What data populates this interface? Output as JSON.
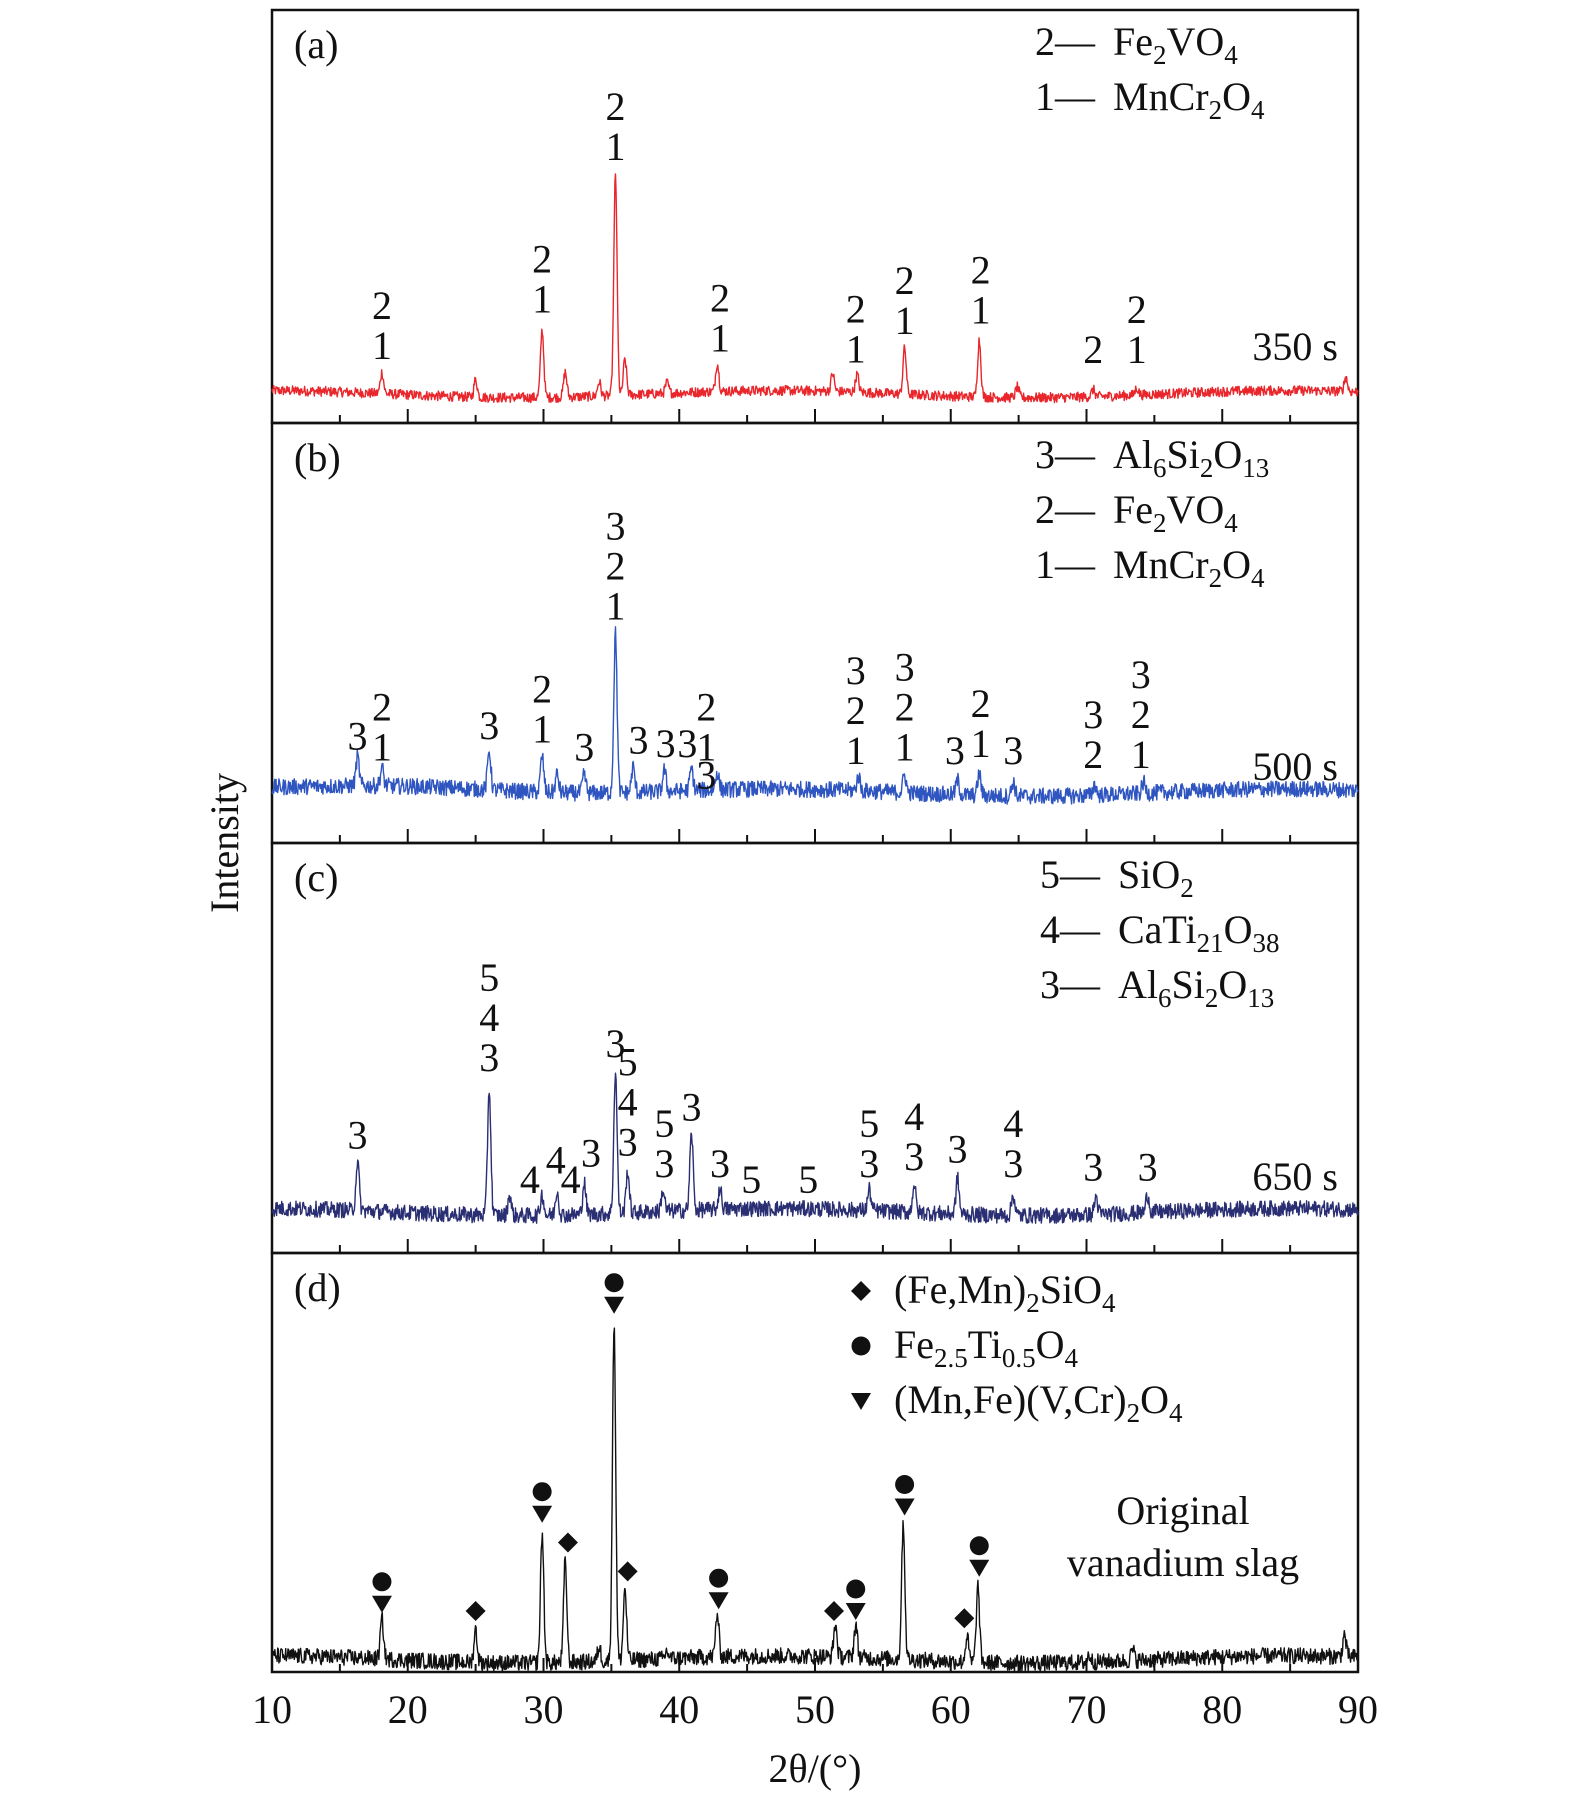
{
  "chart_data": {
    "type": "line",
    "xlabel": "2θ/(°)",
    "ylabel": "Intensity",
    "xlim": [
      10,
      90
    ],
    "x_ticks": [
      10,
      20,
      30,
      40,
      50,
      60,
      70,
      80,
      90
    ],
    "grid": false,
    "panels": [
      {
        "id": "a",
        "label": "(a)",
        "annotation": "350 s",
        "color": "#e8262b",
        "baseline": 0.07,
        "legend": [
          {
            "key": "2",
            "dash": "—",
            "formula": [
              [
                "Fe",
                ""
              ],
              [
                "2",
                "sub"
              ],
              [
                "VO",
                ""
              ],
              [
                "4",
                "sub"
              ]
            ]
          },
          {
            "key": "1",
            "dash": "—",
            "formula": [
              [
                "MnCr",
                ""
              ],
              [
                "2",
                "sub"
              ],
              [
                "O",
                ""
              ],
              [
                "4",
                "sub"
              ]
            ]
          }
        ],
        "peaks": [
          [
            18.1,
            0.06
          ],
          [
            25.0,
            0.05
          ],
          [
            29.9,
            0.19
          ],
          [
            31.6,
            0.07
          ],
          [
            34.1,
            0.04
          ],
          [
            35.3,
            0.62
          ],
          [
            36.0,
            0.1
          ],
          [
            39.1,
            0.03
          ],
          [
            42.8,
            0.08
          ],
          [
            51.3,
            0.05
          ],
          [
            53.1,
            0.05
          ],
          [
            56.6,
            0.13
          ],
          [
            62.1,
            0.16
          ],
          [
            64.9,
            0.03
          ],
          [
            70.5,
            0.02
          ],
          [
            73.7,
            0.02
          ],
          [
            89.1,
            0.04
          ]
        ],
        "markers": [
          {
            "x": 18.1,
            "lines": [
              "2",
              "1"
            ]
          },
          {
            "x": 29.9,
            "lines": [
              "2",
              "1"
            ]
          },
          {
            "x": 35.3,
            "lines": [
              "2",
              "1"
            ]
          },
          {
            "x": 43.0,
            "lines": [
              "2",
              "1"
            ]
          },
          {
            "x": 53.0,
            "lines": [
              "2",
              "1"
            ]
          },
          {
            "x": 56.6,
            "lines": [
              "2",
              "1"
            ]
          },
          {
            "x": 62.2,
            "lines": [
              "2",
              "1"
            ]
          },
          {
            "x": 70.5,
            "lines": [
              "2"
            ]
          },
          {
            "x": 73.7,
            "lines": [
              "2",
              "1"
            ]
          }
        ]
      },
      {
        "id": "b",
        "label": "(b)",
        "annotation": "500 s",
        "color": "#2f55c0",
        "baseline": 0.12,
        "legend": [
          {
            "key": "3",
            "dash": "—",
            "formula": [
              [
                "Al",
                ""
              ],
              [
                "6",
                "sub"
              ],
              [
                "Si",
                ""
              ],
              [
                "2",
                "sub"
              ],
              [
                "O",
                ""
              ],
              [
                "13",
                "sub"
              ]
            ]
          },
          {
            "key": "2",
            "dash": "—",
            "formula": [
              [
                "Fe",
                ""
              ],
              [
                "2",
                "sub"
              ],
              [
                "VO",
                ""
              ],
              [
                "4",
                "sub"
              ]
            ]
          },
          {
            "key": "1",
            "dash": "—",
            "formula": [
              [
                "MnCr",
                ""
              ],
              [
                "2",
                "sub"
              ],
              [
                "O",
                ""
              ],
              [
                "4",
                "sub"
              ]
            ]
          }
        ],
        "peaks": [
          [
            16.3,
            0.08
          ],
          [
            18.1,
            0.05
          ],
          [
            26.0,
            0.11
          ],
          [
            29.9,
            0.1
          ],
          [
            31.0,
            0.05
          ],
          [
            33.0,
            0.05
          ],
          [
            35.3,
            0.44
          ],
          [
            36.6,
            0.07
          ],
          [
            38.9,
            0.06
          ],
          [
            40.9,
            0.06
          ],
          [
            42.8,
            0.05
          ],
          [
            53.2,
            0.04
          ],
          [
            56.6,
            0.05
          ],
          [
            60.5,
            0.04
          ],
          [
            62.1,
            0.06
          ],
          [
            64.6,
            0.04
          ],
          [
            70.6,
            0.03
          ],
          [
            74.2,
            0.03
          ]
        ],
        "markers": [
          {
            "x": 16.3,
            "lines": [
              "3"
            ]
          },
          {
            "x": 18.1,
            "lines": [
              "2",
              "1"
            ]
          },
          {
            "x": 26.0,
            "lines": [
              "3"
            ]
          },
          {
            "x": 29.9,
            "lines": [
              "2",
              "1"
            ]
          },
          {
            "x": 33.0,
            "lines": [
              "3"
            ]
          },
          {
            "x": 35.3,
            "lines": [
              "3",
              "2",
              "1"
            ]
          },
          {
            "x": 37.0,
            "lines": [
              "3"
            ]
          },
          {
            "x": 39.0,
            "lines": [
              "3"
            ]
          },
          {
            "x": 40.6,
            "lines": [
              "3"
            ]
          },
          {
            "x": 42.0,
            "lines": [
              "2",
              "1"
            ]
          },
          {
            "x": 42.0,
            "lines": [
              "3"
            ],
            "row": 2
          },
          {
            "x": 53.0,
            "lines": [
              "3",
              "2",
              "1"
            ]
          },
          {
            "x": 56.6,
            "lines": [
              "3",
              "2",
              "1"
            ]
          },
          {
            "x": 60.3,
            "lines": [
              "3"
            ]
          },
          {
            "x": 62.2,
            "lines": [
              "2",
              "1"
            ]
          },
          {
            "x": 64.6,
            "lines": [
              "3"
            ]
          },
          {
            "x": 70.5,
            "lines": [
              "3",
              "2"
            ]
          },
          {
            "x": 74.0,
            "lines": [
              "3",
              "2",
              "1"
            ]
          }
        ]
      },
      {
        "id": "c",
        "label": "(c)",
        "annotation": "650 s",
        "color": "#2a2e72",
        "baseline": 0.1,
        "legend": [
          {
            "key": "5",
            "dash": "—",
            "formula": [
              [
                "SiO",
                ""
              ],
              [
                "2",
                "sub"
              ]
            ]
          },
          {
            "key": "4",
            "dash": "—",
            "formula": [
              [
                "CaTi",
                ""
              ],
              [
                "21",
                "sub"
              ],
              [
                "O",
                ""
              ],
              [
                "38",
                "sub"
              ]
            ]
          },
          {
            "key": "3",
            "dash": "—",
            "formula": [
              [
                "Al",
                ""
              ],
              [
                "6",
                "sub"
              ],
              [
                "Si",
                ""
              ],
              [
                "2",
                "sub"
              ],
              [
                "O",
                ""
              ],
              [
                "13",
                "sub"
              ]
            ]
          }
        ],
        "peaks": [
          [
            16.3,
            0.14
          ],
          [
            26.0,
            0.36
          ],
          [
            27.5,
            0.06
          ],
          [
            29.9,
            0.06
          ],
          [
            31.0,
            0.07
          ],
          [
            33.0,
            0.09
          ],
          [
            35.3,
            0.4
          ],
          [
            36.2,
            0.12
          ],
          [
            38.8,
            0.06
          ],
          [
            40.9,
            0.22
          ],
          [
            43.0,
            0.06
          ],
          [
            54.0,
            0.06
          ],
          [
            57.3,
            0.08
          ],
          [
            60.5,
            0.1
          ],
          [
            64.6,
            0.06
          ],
          [
            70.7,
            0.05
          ],
          [
            74.5,
            0.05
          ]
        ],
        "markers": [
          {
            "x": 16.3,
            "lines": [
              "3"
            ]
          },
          {
            "x": 26.0,
            "lines": [
              "5",
              "4",
              "3"
            ]
          },
          {
            "x": 29.0,
            "lines": [
              "4"
            ]
          },
          {
            "x": 30.9,
            "lines": [
              "4"
            ]
          },
          {
            "x": 32.0,
            "lines": [
              "4"
            ]
          },
          {
            "x": 33.5,
            "lines": [
              "3"
            ]
          },
          {
            "x": 35.3,
            "lines": [
              "3"
            ]
          },
          {
            "x": 36.2,
            "lines": [
              "5",
              "4",
              "3"
            ]
          },
          {
            "x": 38.9,
            "lines": [
              "5",
              "3"
            ]
          },
          {
            "x": 40.9,
            "lines": [
              "3"
            ]
          },
          {
            "x": 43.0,
            "lines": [
              "3"
            ]
          },
          {
            "x": 45.3,
            "lines": [
              "5"
            ]
          },
          {
            "x": 49.5,
            "lines": [
              "5"
            ]
          },
          {
            "x": 54.0,
            "lines": [
              "5",
              "3"
            ]
          },
          {
            "x": 57.3,
            "lines": [
              "4",
              "3"
            ]
          },
          {
            "x": 60.5,
            "lines": [
              "3"
            ]
          },
          {
            "x": 64.6,
            "lines": [
              "4",
              "3"
            ]
          },
          {
            "x": 70.5,
            "lines": [
              "3"
            ]
          },
          {
            "x": 74.5,
            "lines": [
              "3"
            ]
          }
        ]
      },
      {
        "id": "d",
        "label": "(d)",
        "annotation_lines": [
          "Original",
          "vanadium slag"
        ],
        "color": "#111111",
        "baseline": 0.03,
        "legend": [
          {
            "symbol": "diamond",
            "formula": [
              [
                "(Fe,Mn)",
                ""
              ],
              [
                "2",
                "sub"
              ],
              [
                "SiO",
                ""
              ],
              [
                "4",
                "sub"
              ]
            ]
          },
          {
            "symbol": "circle",
            "formula": [
              [
                "Fe",
                ""
              ],
              [
                "2.5",
                "sub"
              ],
              [
                "Ti",
                ""
              ],
              [
                "0.5",
                "sub"
              ],
              [
                "O",
                ""
              ],
              [
                "4",
                "sub"
              ]
            ]
          },
          {
            "symbol": "triangle",
            "formula": [
              [
                "(Mn,Fe)(V,Cr)",
                ""
              ],
              [
                "2",
                "sub"
              ],
              [
                "O",
                ""
              ],
              [
                "4",
                "sub"
              ]
            ]
          }
        ],
        "peaks": [
          [
            18.1,
            0.11
          ],
          [
            25.0,
            0.09
          ],
          [
            29.9,
            0.36
          ],
          [
            31.6,
            0.28
          ],
          [
            34.1,
            0.04
          ],
          [
            35.2,
            0.94
          ],
          [
            36.0,
            0.2
          ],
          [
            39.1,
            0.02
          ],
          [
            42.8,
            0.12
          ],
          [
            51.5,
            0.09
          ],
          [
            53.0,
            0.09
          ],
          [
            56.5,
            0.38
          ],
          [
            61.2,
            0.07
          ],
          [
            62.0,
            0.21
          ],
          [
            70.2,
            0.02
          ],
          [
            73.4,
            0.03
          ],
          [
            89.0,
            0.06
          ]
        ],
        "markers": [
          {
            "x": 18.1,
            "symbols": [
              "circle",
              "triangle"
            ]
          },
          {
            "x": 25.0,
            "symbols": [
              "diamond"
            ]
          },
          {
            "x": 29.9,
            "symbols": [
              "circle",
              "triangle"
            ]
          },
          {
            "x": 31.8,
            "symbols": [
              "diamond"
            ]
          },
          {
            "x": 35.2,
            "symbols": [
              "circle",
              "triangle"
            ]
          },
          {
            "x": 36.2,
            "symbols": [
              "diamond"
            ]
          },
          {
            "x": 42.9,
            "symbols": [
              "circle",
              "triangle"
            ]
          },
          {
            "x": 51.4,
            "symbols": [
              "diamond"
            ]
          },
          {
            "x": 53.0,
            "symbols": [
              "circle",
              "triangle"
            ]
          },
          {
            "x": 56.6,
            "symbols": [
              "circle",
              "triangle"
            ]
          },
          {
            "x": 61.0,
            "symbols": [
              "diamond"
            ]
          },
          {
            "x": 62.1,
            "symbols": [
              "circle",
              "triangle"
            ]
          }
        ]
      }
    ]
  }
}
